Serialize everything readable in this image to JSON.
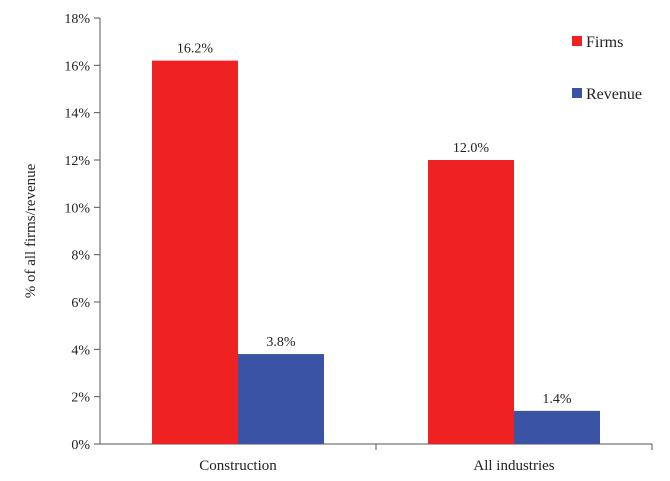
{
  "chart_data": {
    "type": "bar",
    "title": "",
    "xlabel": "",
    "ylabel": "% of all firms/revenue",
    "categories": [
      "Construction",
      "All industries"
    ],
    "series": [
      {
        "name": "Firms",
        "values": [
          16.2,
          12.0
        ],
        "color": "#ee2222",
        "labels": [
          "16.2%",
          "12.0%"
        ]
      },
      {
        "name": "Revenue",
        "values": [
          3.8,
          1.4
        ],
        "color": "#3a53a4",
        "labels": [
          "3.8%",
          "1.4%"
        ]
      }
    ],
    "ylim": [
      0,
      18
    ],
    "yticks": [
      0,
      2,
      4,
      6,
      8,
      10,
      12,
      14,
      16,
      18
    ],
    "ytick_labels": [
      "0%",
      "2%",
      "4%",
      "6%",
      "8%",
      "10%",
      "12%",
      "14%",
      "16%",
      "18%"
    ],
    "grid": false,
    "legend": "top-right"
  }
}
